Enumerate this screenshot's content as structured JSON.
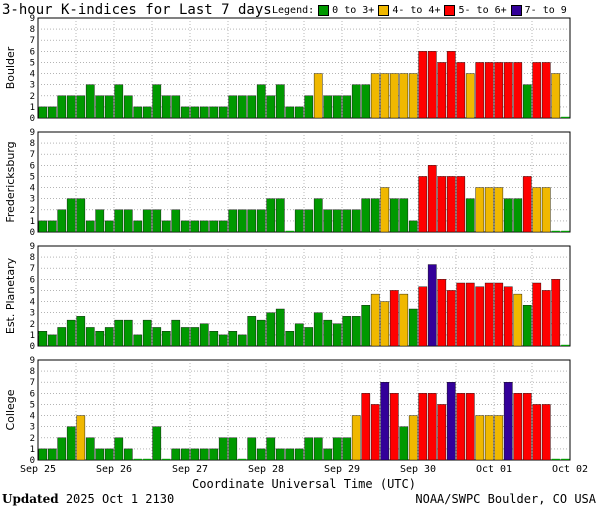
{
  "title": "3-hour K-indices for Last 7 days",
  "legend": {
    "label": "Legend:",
    "items": [
      {
        "label": "0 to 3+",
        "color": "#009900"
      },
      {
        "label": "4- to 4+",
        "color": "#f0b800"
      },
      {
        "label": "5- to 6+",
        "color": "#ff0000"
      },
      {
        "label": "7- to 9",
        "color": "#330099"
      }
    ]
  },
  "footer": {
    "updated_label": "Updated",
    "updated_value": "2025 Oct  1 2130",
    "credit": "NOAA/SWPC Boulder, CO USA"
  },
  "chart_data": {
    "type": "bar",
    "xlabel": "Coordinate Universal Time (UTC)",
    "x_tick_labels": [
      "Sep 25",
      "Sep 26",
      "Sep 27",
      "Sep 28",
      "Sep 29",
      "Sep 30",
      "Oct 01",
      "Oct 02"
    ],
    "ylim": [
      0,
      9
    ],
    "y_ticks": [
      0,
      1,
      2,
      3,
      4,
      5,
      6,
      7,
      8,
      9
    ],
    "grid": true,
    "panels": [
      {
        "name": "Boulder",
        "values": [
          1,
          1,
          2,
          2,
          2,
          3,
          2,
          2,
          3,
          2,
          1,
          1,
          3,
          2,
          2,
          1,
          1,
          1,
          1,
          1,
          2,
          2,
          2,
          3,
          2,
          3,
          1,
          1,
          2,
          4,
          2,
          2,
          2,
          3,
          3,
          4,
          4,
          4,
          4,
          4,
          6,
          6,
          5,
          6,
          5,
          4,
          5,
          5,
          5,
          5,
          5,
          3,
          5,
          5,
          4,
          0
        ]
      },
      {
        "name": "Fredericksburg",
        "values": [
          1,
          1,
          2,
          3,
          3,
          1,
          2,
          1,
          2,
          2,
          1,
          2,
          2,
          1,
          2,
          1,
          1,
          1,
          1,
          1,
          2,
          2,
          2,
          2,
          3,
          3,
          0,
          2,
          2,
          3,
          2,
          2,
          2,
          2,
          3,
          3,
          4,
          3,
          3,
          1,
          5,
          6,
          5,
          5,
          5,
          3,
          4,
          4,
          4,
          3,
          3,
          5,
          4,
          4,
          0,
          0
        ]
      },
      {
        "name": "Est. Planetary",
        "values": [
          1.33,
          1,
          1.67,
          2.33,
          2.67,
          1.67,
          1.33,
          1.67,
          2.33,
          2.33,
          1,
          2.33,
          1.67,
          1.33,
          2.33,
          1.67,
          1.67,
          2,
          1.33,
          1,
          1.33,
          1,
          2.67,
          2.33,
          3,
          3.33,
          1.33,
          2,
          1.67,
          3,
          2.33,
          2,
          2.67,
          2.67,
          3.67,
          4.67,
          4,
          5,
          4.67,
          3.33,
          5.33,
          7.33,
          6,
          5,
          5.67,
          5.67,
          5.33,
          5.67,
          5.67,
          5.33,
          4.67,
          3.67,
          5.67,
          5,
          6,
          0
        ]
      },
      {
        "name": "College",
        "values": [
          1,
          1,
          2,
          3,
          4,
          2,
          1,
          1,
          2,
          1,
          0,
          0,
          3,
          0,
          1,
          1,
          1,
          1,
          1,
          2,
          2,
          0,
          2,
          1,
          2,
          1,
          1,
          1,
          2,
          2,
          1,
          2,
          2,
          4,
          6,
          5,
          7,
          6,
          3,
          4,
          6,
          6,
          5,
          7,
          6,
          6,
          4,
          4,
          4,
          7,
          6,
          6,
          5,
          5,
          0,
          0
        ]
      }
    ]
  }
}
